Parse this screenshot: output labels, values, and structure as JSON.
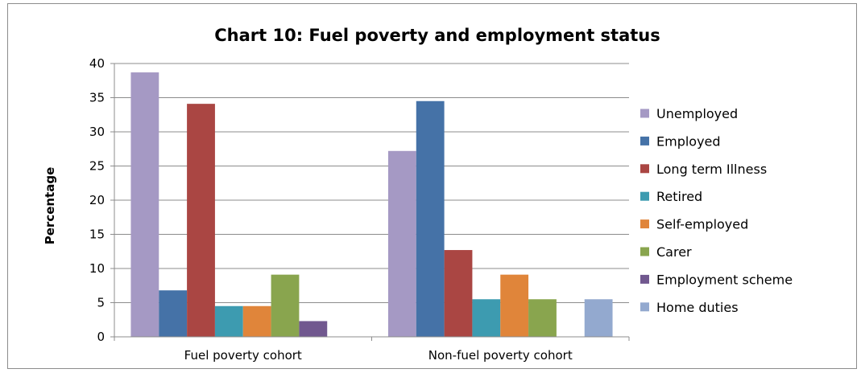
{
  "chart_data": {
    "type": "bar",
    "title": "Chart 10: Fuel poverty and employment status",
    "xlabel": "",
    "ylabel": "Percentage",
    "ylim": [
      0,
      40
    ],
    "yticks": [
      "0",
      "5",
      "10",
      "15",
      "20",
      "25",
      "30",
      "35",
      "40"
    ],
    "grid": true,
    "legend_position": "right",
    "categories": [
      "Fuel poverty cohort",
      "Non-fuel poverty cohort"
    ],
    "series": [
      {
        "name": "Unemployed",
        "color": "#a599c4",
        "values": [
          38.7,
          27.2
        ]
      },
      {
        "name": "Employed",
        "color": "#4572a7",
        "values": [
          6.8,
          34.5
        ]
      },
      {
        "name": "Long term Illness",
        "color": "#aa4643",
        "values": [
          34.1,
          12.7
        ]
      },
      {
        "name": "Retired",
        "color": "#3d9bb0",
        "values": [
          4.5,
          5.5
        ]
      },
      {
        "name": "Self-employed",
        "color": "#e0853a",
        "values": [
          4.5,
          9.1
        ]
      },
      {
        "name": "Carer",
        "color": "#89a54e",
        "values": [
          9.1,
          5.5
        ]
      },
      {
        "name": "Employment scheme",
        "color": "#71588f",
        "values": [
          2.3,
          0
        ]
      },
      {
        "name": "Home duties",
        "color": "#93a9cf",
        "values": [
          0,
          5.5
        ]
      }
    ]
  }
}
